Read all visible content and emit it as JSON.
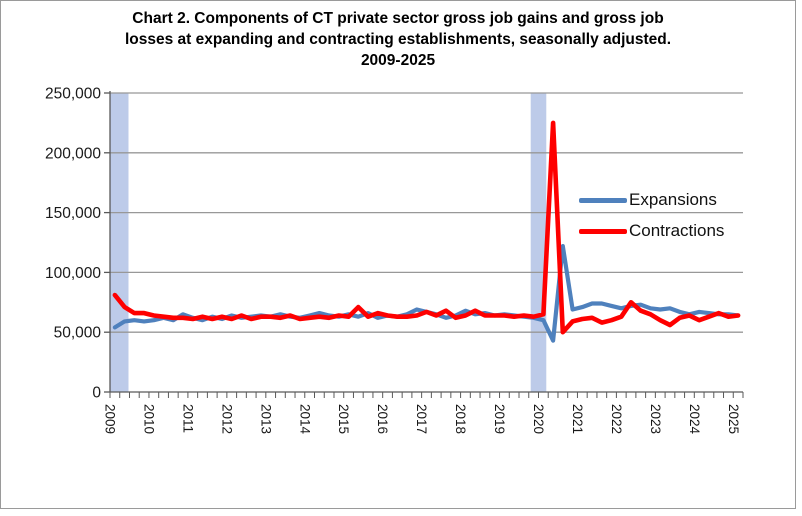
{
  "title": {
    "lines": [
      "Chart 2. Components of CT private sector gross job gains and gross  job",
      "losses at expanding and contracting establishments, seasonally adjusted.",
      "2009-2025"
    ]
  },
  "legend": {
    "items": [
      {
        "label": "Expansions",
        "color": "#4f81bd"
      },
      {
        "label": "Contractions",
        "color": "#fe0000"
      }
    ]
  },
  "y_axis": {
    "ticks": [
      {
        "value": 250000,
        "label": "250,000"
      },
      {
        "value": 200000,
        "label": "200,000"
      },
      {
        "value": 150000,
        "label": "150,000"
      },
      {
        "value": 100000,
        "label": "100,000"
      },
      {
        "value": 50000,
        "label": "50,000"
      },
      {
        "value": 0,
        "label": "0"
      }
    ]
  },
  "x_axis": {
    "year_labels": [
      "2009",
      "2010",
      "2011",
      "2012",
      "2013",
      "2014",
      "2015",
      "2016",
      "2017",
      "2018",
      "2019",
      "2020",
      "2021",
      "2022",
      "2023",
      "2024",
      "2025"
    ]
  },
  "colors": {
    "expansions_line": "#4f81bd",
    "contractions_line": "#fe0000",
    "recession_band": "#bdcbe9",
    "gridline": "#989898",
    "axis_line": "#595959",
    "tick_text": "#1a1a1a",
    "frame_border": "#9a9a9a"
  },
  "chart_data": {
    "type": "line",
    "title": "Chart 2. Components of CT private sector gross job gains and gross  job losses at expanding and contracting establishments, seasonally adjusted. 2009-2025",
    "xlabel": "",
    "ylabel": "",
    "ylim": [
      0,
      250000
    ],
    "y_tick_step": 50000,
    "grid": "horizontal",
    "legend_position": "center-right",
    "frequency": "quarterly",
    "x_quarters": [
      "2009 Q1",
      "2009 Q2",
      "2009 Q3",
      "2009 Q4",
      "2010 Q1",
      "2010 Q2",
      "2010 Q3",
      "2010 Q4",
      "2011 Q1",
      "2011 Q2",
      "2011 Q3",
      "2011 Q4",
      "2012 Q1",
      "2012 Q2",
      "2012 Q3",
      "2012 Q4",
      "2013 Q1",
      "2013 Q2",
      "2013 Q3",
      "2013 Q4",
      "2014 Q1",
      "2014 Q2",
      "2014 Q3",
      "2014 Q4",
      "2015 Q1",
      "2015 Q2",
      "2015 Q3",
      "2015 Q4",
      "2016 Q1",
      "2016 Q2",
      "2016 Q3",
      "2016 Q4",
      "2017 Q1",
      "2017 Q2",
      "2017 Q3",
      "2017 Q4",
      "2018 Q1",
      "2018 Q2",
      "2018 Q3",
      "2018 Q4",
      "2019 Q1",
      "2019 Q2",
      "2019 Q3",
      "2019 Q4",
      "2020 Q1",
      "2020 Q2",
      "2020 Q3",
      "2020 Q4",
      "2021 Q1",
      "2021 Q2",
      "2021 Q3",
      "2021 Q4",
      "2022 Q1",
      "2022 Q2",
      "2022 Q3",
      "2022 Q4",
      "2023 Q1",
      "2023 Q2",
      "2023 Q3",
      "2023 Q4",
      "2024 Q1",
      "2024 Q2",
      "2024 Q3",
      "2024 Q4",
      "2025 Q1"
    ],
    "series": [
      {
        "name": "Expansions",
        "color": "#4f81bd",
        "values": [
          54000,
          59000,
          60000,
          59000,
          60000,
          62000,
          60000,
          65000,
          62000,
          60000,
          63000,
          61000,
          64000,
          62000,
          63000,
          64000,
          63000,
          65000,
          63000,
          62000,
          64000,
          66000,
          64000,
          63000,
          65000,
          63000,
          66000,
          62000,
          64000,
          63000,
          65000,
          69000,
          67000,
          65000,
          62000,
          64000,
          68000,
          65000,
          66000,
          64000,
          65000,
          64000,
          63000,
          62000,
          60000,
          43000,
          122000,
          69000,
          71000,
          74000,
          74000,
          72000,
          70000,
          72000,
          73000,
          70000,
          69000,
          70000,
          67000,
          65000,
          67000,
          66000,
          65000,
          65000,
          64000
        ]
      },
      {
        "name": "Contractions",
        "color": "#fe0000",
        "values": [
          81000,
          71000,
          66000,
          66000,
          64000,
          63000,
          62000,
          62000,
          61000,
          63000,
          61000,
          63000,
          61000,
          64000,
          61000,
          63000,
          63000,
          62000,
          64000,
          61000,
          62000,
          63000,
          62000,
          64000,
          63000,
          71000,
          63000,
          66000,
          64000,
          63000,
          63000,
          64000,
          67000,
          64000,
          68000,
          62000,
          64000,
          68000,
          64000,
          64000,
          64000,
          63000,
          64000,
          63000,
          65000,
          225000,
          50000,
          59000,
          61000,
          62000,
          58000,
          60000,
          63000,
          75000,
          68000,
          65000,
          60000,
          56000,
          62000,
          64000,
          60000,
          63000,
          66000,
          63000,
          64000
        ]
      }
    ],
    "recession_bands": [
      {
        "from_quarter_index": -0.5,
        "to_quarter_index": 1.4
      },
      {
        "from_quarter_index": 42.7,
        "to_quarter_index": 44.3
      }
    ]
  }
}
